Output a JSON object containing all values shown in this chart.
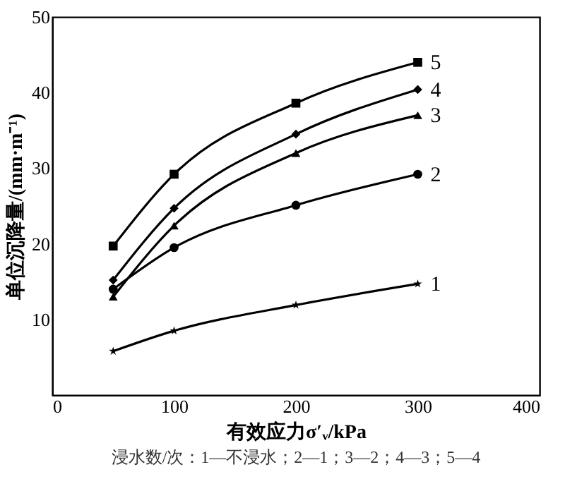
{
  "chart_data": {
    "type": "line",
    "xlabel": "有效应力σ′ᵥ/kPa",
    "ylabel": "单位沉降量/(mm·m⁻¹)",
    "annotations": [
      "浸水数/次：1—不浸水；2—1；3—2；4—3；5—4"
    ],
    "x": [
      50,
      100,
      200,
      300
    ],
    "series": [
      {
        "name": "5",
        "color": "#000000",
        "marker": "square",
        "values": [
          19.7,
          29.2,
          38.6,
          44.0
        ]
      },
      {
        "name": "4",
        "color": "#000000",
        "marker": "diamond",
        "values": [
          15.2,
          24.7,
          34.5,
          40.4
        ]
      },
      {
        "name": "3",
        "color": "#000000",
        "marker": "triangle",
        "values": [
          13.0,
          22.4,
          32.0,
          37.0
        ]
      },
      {
        "name": "2",
        "color": "#000000",
        "marker": "circle",
        "values": [
          14.0,
          19.5,
          25.1,
          29.2
        ]
      },
      {
        "name": "1",
        "color": "#000000",
        "marker": "star",
        "values": [
          5.8,
          8.5,
          11.9,
          14.7
        ]
      }
    ],
    "xlim": [
      0,
      400
    ],
    "xticks": [
      0,
      100,
      200,
      300,
      400
    ],
    "ylim": [
      0,
      50
    ],
    "yticks": [
      10,
      20,
      30,
      40,
      50
    ],
    "grid": false,
    "legend": false,
    "line_style": "solid"
  }
}
